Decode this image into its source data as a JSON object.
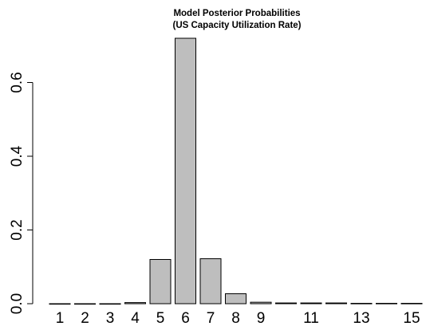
{
  "chart_data": {
    "type": "bar",
    "title": "Model Posterior Probabilities",
    "subtitle": "(US Capacity Utilization Rate)",
    "xlabel": "",
    "ylabel": "",
    "categories": [
      "1",
      "2",
      "3",
      "4",
      "5",
      "6",
      "7",
      "8",
      "9",
      "10",
      "11",
      "12",
      "13",
      "14",
      "15"
    ],
    "shown_category_labels": [
      "1",
      "2",
      "3",
      "4",
      "5",
      "6",
      "7",
      "8",
      "9",
      "11",
      "13",
      "15"
    ],
    "values": [
      0.0,
      0.0,
      0.0,
      0.003,
      0.12,
      0.72,
      0.122,
      0.027,
      0.004,
      0.002,
      0.002,
      0.002,
      0.001,
      0.001,
      0.001
    ],
    "ylim": [
      0,
      0.72
    ],
    "yticks": [
      0.0,
      0.2,
      0.4,
      0.6
    ],
    "ytick_labels": [
      "0.0",
      "0.2",
      "0.4",
      "0.6"
    ],
    "grid": false,
    "legend": "none",
    "bar_fill": "#bebebe",
    "bar_stroke": "#000000"
  }
}
